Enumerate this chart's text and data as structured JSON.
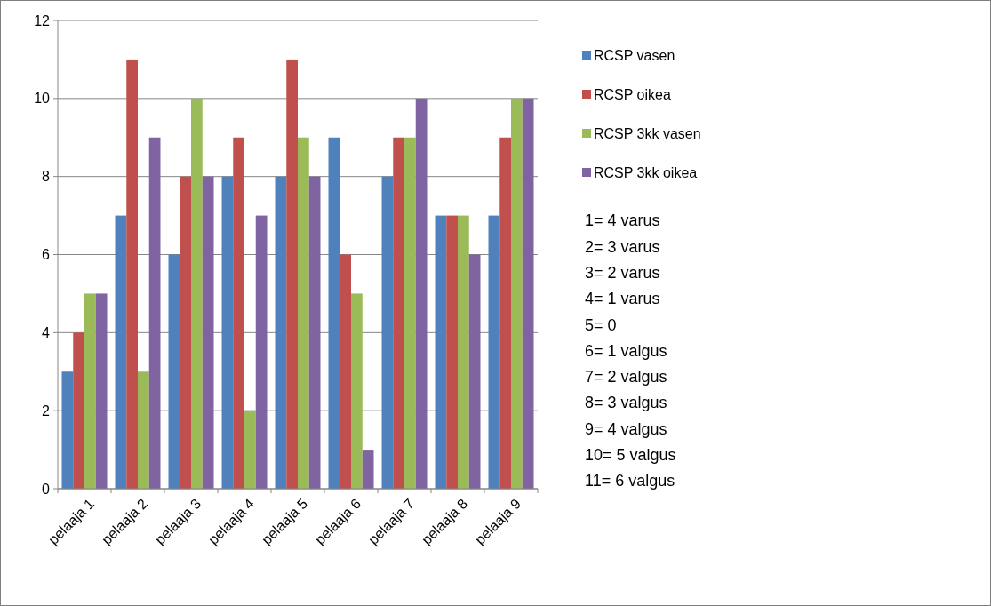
{
  "chart_data": {
    "type": "bar",
    "categories": [
      "pelaaja 1",
      "pelaaja 2",
      "pelaaja 3",
      "pelaaja 4",
      "pelaaja 5",
      "pelaaja 6",
      "pelaaja 7",
      "pelaaja 8",
      "pelaaja 9"
    ],
    "series": [
      {
        "name": "RCSP vasen",
        "color": "#4f81bd",
        "values": [
          3,
          7,
          6,
          8,
          8,
          9,
          8,
          7,
          7
        ]
      },
      {
        "name": "RCSP oikea",
        "color": "#c0504d",
        "values": [
          4,
          11,
          8,
          9,
          11,
          6,
          9,
          7,
          9
        ]
      },
      {
        "name": "RCSP 3kk vasen",
        "color": "#9bbb59",
        "values": [
          5,
          3,
          10,
          2,
          9,
          5,
          9,
          7,
          10
        ]
      },
      {
        "name": "RCSP 3kk oikea",
        "color": "#8064a2",
        "values": [
          5,
          9,
          8,
          7,
          8,
          1,
          10,
          6,
          10
        ]
      }
    ],
    "ylim": [
      0,
      12
    ],
    "yticks": [
      0,
      2,
      4,
      6,
      8,
      10,
      12
    ],
    "grid": "y",
    "legend": "right",
    "annotations": [
      "1= 4 varus",
      "2= 3 varus",
      "3= 2 varus",
      "4= 1 varus",
      "5= 0",
      "6= 1 valgus",
      "7= 2 valgus",
      "8= 3 valgus",
      "9= 4 valgus",
      "10= 5 valgus",
      "11= 6 valgus"
    ]
  }
}
